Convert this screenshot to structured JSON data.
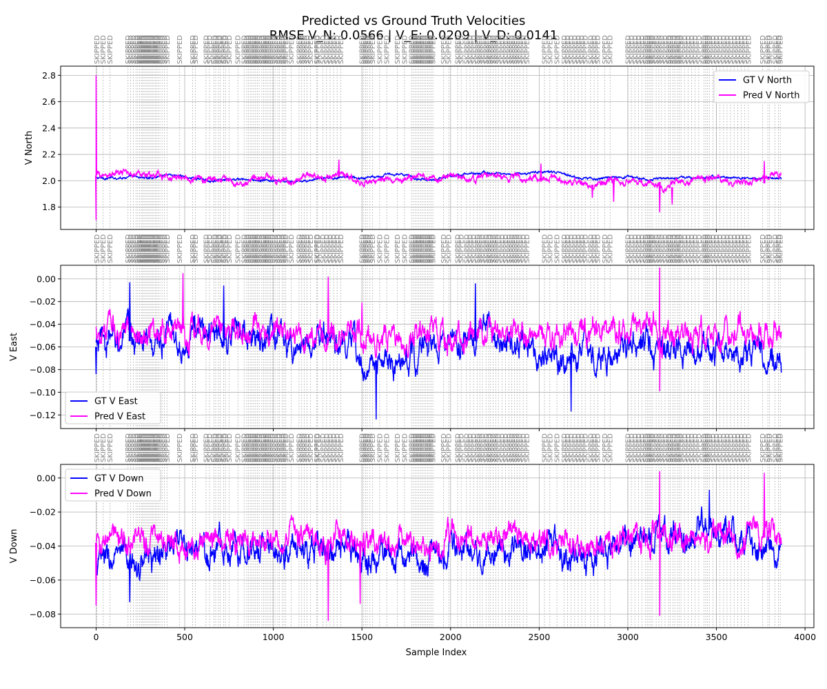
{
  "figure": {
    "title_line1": "Predicted vs Ground Truth Velocities",
    "title_line2": "RMSE V_N: 0.0566 | V_E: 0.0209 | V_D: 0.0141",
    "xlabel": "Sample Index"
  },
  "skip_label": "SKIPPED",
  "skip_positions": [
    5,
    40,
    78,
    180,
    195,
    210,
    225,
    235,
    245,
    255,
    262,
    270,
    278,
    286,
    294,
    302,
    310,
    318,
    326,
    334,
    342,
    350,
    360,
    372,
    385,
    400,
    470,
    545,
    560,
    620,
    640,
    665,
    675,
    690,
    700,
    720,
    730,
    750,
    800,
    835,
    850,
    860,
    870,
    880,
    890,
    900,
    910,
    920,
    935,
    945,
    955,
    965,
    975,
    985,
    995,
    1010,
    1025,
    1035,
    1050,
    1060,
    1070,
    1100,
    1145,
    1160,
    1175,
    1190,
    1210,
    1245,
    1250,
    1280,
    1300,
    1320,
    1340,
    1360,
    1380,
    1500,
    1510,
    1520,
    1530,
    1545,
    1560,
    1600,
    1640,
    1700,
    1740,
    1780,
    1790,
    1800,
    1810,
    1820,
    1830,
    1840,
    1850,
    1860,
    1870,
    1880,
    1890,
    1900,
    1960,
    1990,
    2040,
    2060,
    2090,
    2110,
    2130,
    2150,
    2165,
    2180,
    2200,
    2215,
    2225,
    2240,
    2255,
    2270,
    2290,
    2310,
    2330,
    2345,
    2360,
    2375,
    2390,
    2410,
    2430,
    2530,
    2560,
    2600,
    2640,
    2660,
    2680,
    2700,
    2720,
    2740,
    2760,
    2790,
    2810,
    2830,
    2870,
    2900,
    3000,
    3020,
    3040,
    3060,
    3080,
    3100,
    3110,
    3120,
    3130,
    3140,
    3160,
    3175,
    3190,
    3210,
    3230,
    3240,
    3255,
    3265,
    3280,
    3290,
    3300,
    3320,
    3340,
    3360,
    3380,
    3400,
    3430,
    3440,
    3450,
    3460,
    3480,
    3500,
    3520,
    3540,
    3560,
    3580,
    3600,
    3620,
    3640,
    3660,
    3680,
    3760,
    3790,
    3800,
    3830,
    3850,
    3860
  ],
  "chart_data": [
    {
      "type": "line",
      "ylabel": "V North",
      "xlim": [
        -200,
        4050
      ],
      "ylim": [
        1.63,
        2.87
      ],
      "xticks": [
        0,
        500,
        1000,
        1500,
        2000,
        2500,
        3000,
        3500,
        4000
      ],
      "yticks": [
        1.8,
        2.0,
        2.2,
        2.4,
        2.6,
        2.8
      ],
      "ytick_labels": [
        "1.8",
        "2.0",
        "2.2",
        "2.4",
        "2.6",
        "2.8"
      ],
      "legend_loc": "upper-right",
      "n_samples": 3868,
      "series": [
        {
          "name": "GT V North",
          "color": "#0000ff",
          "x_step": 100,
          "values": [
            2.02,
            2.02,
            2.03,
            2.02,
            2.05,
            2.03,
            2.01,
            2.0,
            2.01,
            2.0,
            2.0,
            1.99,
            2.0,
            2.02,
            2.03,
            2.02,
            2.04,
            2.05,
            2.02,
            2.01,
            2.04,
            2.05,
            2.06,
            2.05,
            2.05,
            2.07,
            2.06,
            2.03,
            2.02,
            2.02,
            2.03,
            2.01,
            2.02,
            2.02,
            2.02,
            2.03,
            2.02,
            2.02,
            2.02
          ]
        },
        {
          "name": "Pred V North",
          "color": "#ff00ff",
          "x_step": 100,
          "values": [
            2.04,
            2.05,
            2.06,
            2.04,
            2.02,
            2.03,
            2.0,
            2.02,
            1.97,
            2.01,
            2.02,
            1.97,
            2.05,
            2.03,
            2.06,
            1.96,
            2.02,
            2.01,
            2.05,
            2.03,
            2.04,
            2.01,
            2.03,
            2.03,
            2.02,
            2.01,
            2.03,
            1.98,
            1.97,
            2.0,
            2.01,
            1.99,
            1.95,
            2.0,
            2.01,
            2.01,
            1.99,
            1.98,
            2.04
          ]
        }
      ],
      "spikes": [
        {
          "series": "Pred V North",
          "x": 0,
          "values": [
            1.7,
            2.8
          ]
        },
        {
          "series": "Pred V North",
          "x": 1370,
          "values": [
            2.16
          ]
        },
        {
          "series": "Pred V North",
          "x": 2510,
          "values": [
            2.13
          ]
        },
        {
          "series": "Pred V North",
          "x": 2800,
          "values": [
            1.87
          ]
        },
        {
          "series": "Pred V North",
          "x": 2920,
          "values": [
            1.84
          ]
        },
        {
          "series": "Pred V North",
          "x": 3180,
          "values": [
            1.76
          ]
        },
        {
          "series": "Pred V North",
          "x": 3250,
          "values": [
            1.82
          ]
        },
        {
          "series": "Pred V North",
          "x": 3770,
          "values": [
            2.15
          ]
        }
      ]
    },
    {
      "type": "line",
      "ylabel": "V East",
      "xlim": [
        -200,
        4050
      ],
      "ylim": [
        -0.132,
        0.012
      ],
      "xticks": [
        0,
        500,
        1000,
        1500,
        2000,
        2500,
        3000,
        3500,
        4000
      ],
      "yticks": [
        -0.12,
        -0.1,
        -0.08,
        -0.06,
        -0.04,
        -0.02,
        0.0
      ],
      "ytick_labels": [
        "−0.12",
        "−0.10",
        "−0.08",
        "−0.06",
        "−0.04",
        "−0.02",
        "0.00"
      ],
      "legend_loc": "lower-left",
      "n_samples": 3868,
      "series": [
        {
          "name": "GT V East",
          "color": "#0000ff",
          "x_step": 100,
          "values": [
            -0.06,
            -0.055,
            -0.05,
            -0.058,
            -0.048,
            -0.05,
            -0.046,
            -0.052,
            -0.048,
            -0.054,
            -0.05,
            -0.058,
            -0.055,
            -0.052,
            -0.062,
            -0.072,
            -0.075,
            -0.078,
            -0.068,
            -0.058,
            -0.06,
            -0.055,
            -0.05,
            -0.062,
            -0.058,
            -0.06,
            -0.065,
            -0.066,
            -0.062,
            -0.068,
            -0.062,
            -0.06,
            -0.065,
            -0.058,
            -0.062,
            -0.066,
            -0.068,
            -0.065,
            -0.07
          ]
        },
        {
          "name": "Pred V East",
          "color": "#ff00ff",
          "x_step": 100,
          "values": [
            -0.045,
            -0.046,
            -0.048,
            -0.047,
            -0.044,
            -0.043,
            -0.046,
            -0.048,
            -0.047,
            -0.046,
            -0.045,
            -0.048,
            -0.05,
            -0.049,
            -0.051,
            -0.05,
            -0.049,
            -0.048,
            -0.047,
            -0.046,
            -0.047,
            -0.048,
            -0.049,
            -0.05,
            -0.048,
            -0.049,
            -0.051,
            -0.05,
            -0.049,
            -0.048,
            -0.047,
            -0.046,
            -0.048,
            -0.049,
            -0.048,
            -0.047,
            -0.046,
            -0.045,
            -0.046
          ]
        }
      ],
      "spikes": [
        {
          "series": "GT V East",
          "x": 0,
          "values": [
            -0.084
          ]
        },
        {
          "series": "GT V East",
          "x": 190,
          "values": [
            -0.003
          ]
        },
        {
          "series": "GT V East",
          "x": 720,
          "values": [
            -0.006
          ]
        },
        {
          "series": "GT V East",
          "x": 1580,
          "values": [
            -0.124
          ]
        },
        {
          "series": "GT V East",
          "x": 2140,
          "values": [
            -0.004
          ]
        },
        {
          "series": "GT V East",
          "x": 2680,
          "values": [
            -0.117
          ]
        },
        {
          "series": "Pred V East",
          "x": 490,
          "values": [
            0.005
          ]
        },
        {
          "series": "Pred V East",
          "x": 1310,
          "values": [
            0.002
          ]
        },
        {
          "series": "Pred V East",
          "x": 3180,
          "values": [
            0.01,
            -0.099
          ]
        },
        {
          "series": "Pred V East",
          "x": 1500,
          "values": [
            -0.021
          ]
        }
      ]
    },
    {
      "type": "line",
      "ylabel": "V Down",
      "xlim": [
        -200,
        4050
      ],
      "ylim": [
        -0.088,
        0.008
      ],
      "xticks": [
        0,
        500,
        1000,
        1500,
        2000,
        2500,
        3000,
        3500,
        4000
      ],
      "xtick_labels": [
        "0",
        "500",
        "1000",
        "1500",
        "2000",
        "2500",
        "3000",
        "3500",
        "4000"
      ],
      "yticks": [
        -0.08,
        -0.06,
        -0.04,
        -0.02,
        0.0
      ],
      "ytick_labels": [
        "−0.08",
        "−0.06",
        "−0.04",
        "−0.02",
        "0.00"
      ],
      "legend_loc": "upper-left",
      "n_samples": 3868,
      "series": [
        {
          "name": "GT V Down",
          "color": "#0000ff",
          "x_step": 100,
          "values": [
            -0.05,
            -0.048,
            -0.052,
            -0.046,
            -0.044,
            -0.042,
            -0.044,
            -0.04,
            -0.038,
            -0.04,
            -0.042,
            -0.04,
            -0.044,
            -0.042,
            -0.046,
            -0.048,
            -0.044,
            -0.046,
            -0.048,
            -0.046,
            -0.044,
            -0.042,
            -0.046,
            -0.044,
            -0.042,
            -0.04,
            -0.044,
            -0.046,
            -0.044,
            -0.04,
            -0.038,
            -0.036,
            -0.034,
            -0.036,
            -0.03,
            -0.028,
            -0.034,
            -0.036,
            -0.04
          ]
        },
        {
          "name": "Pred V Down",
          "color": "#ff00ff",
          "x_step": 100,
          "values": [
            -0.038,
            -0.036,
            -0.038,
            -0.037,
            -0.036,
            -0.036,
            -0.037,
            -0.036,
            -0.035,
            -0.036,
            -0.037,
            -0.036,
            -0.037,
            -0.036,
            -0.037,
            -0.038,
            -0.037,
            -0.036,
            -0.037,
            -0.038,
            -0.037,
            -0.036,
            -0.037,
            -0.036,
            -0.035,
            -0.036,
            -0.037,
            -0.038,
            -0.037,
            -0.036,
            -0.035,
            -0.034,
            -0.036,
            -0.035,
            -0.036,
            -0.035,
            -0.036,
            -0.035,
            -0.036
          ]
        }
      ],
      "spikes": [
        {
          "series": "Pred V Down",
          "x": 0,
          "values": [
            -0.075
          ]
        },
        {
          "series": "Pred V Down",
          "x": 1310,
          "values": [
            -0.084
          ]
        },
        {
          "series": "Pred V Down",
          "x": 1490,
          "values": [
            -0.074
          ]
        },
        {
          "series": "Pred V Down",
          "x": 3180,
          "values": [
            0.004,
            -0.081
          ]
        },
        {
          "series": "Pred V Down",
          "x": 3770,
          "values": [
            0.003
          ]
        },
        {
          "series": "GT V Down",
          "x": 190,
          "values": [
            -0.073
          ]
        },
        {
          "series": "GT V Down",
          "x": 3460,
          "values": [
            -0.007
          ]
        }
      ]
    }
  ]
}
